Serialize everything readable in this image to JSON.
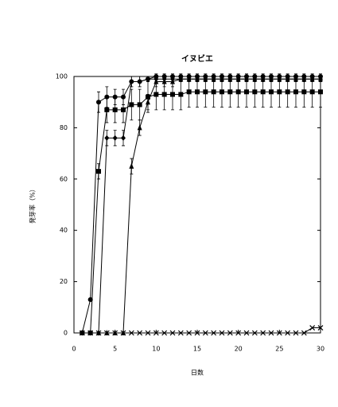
{
  "chart_data": {
    "type": "line",
    "title": "イヌビエ",
    "x_label": "日数",
    "y_label": "発芽率（%）",
    "x": [
      1,
      2,
      3,
      4,
      5,
      6,
      7,
      8,
      9,
      10,
      11,
      12,
      13,
      14,
      15,
      16,
      17,
      18,
      19,
      20,
      21,
      22,
      23,
      24,
      25,
      26,
      27,
      28,
      29,
      30
    ],
    "xlim": [
      0,
      30
    ],
    "xticks": [
      0,
      5,
      10,
      15,
      20,
      25,
      30
    ],
    "ylim": [
      0,
      100
    ],
    "yticks": [
      0,
      20,
      40,
      60,
      80,
      100
    ],
    "series": [
      {
        "marker": "circle",
        "color": "#000000",
        "values": [
          0,
          13,
          90,
          92,
          92,
          92,
          98,
          98,
          99,
          100,
          100,
          100,
          100,
          100,
          100,
          100,
          100,
          100,
          100,
          100,
          100,
          100,
          100,
          100,
          100,
          100,
          100,
          100,
          100,
          100
        ],
        "errors": [
          0,
          0,
          4,
          4,
          3,
          3,
          2,
          2,
          1,
          1,
          1,
          1,
          1,
          1,
          1,
          1,
          1,
          1,
          1,
          1,
          1,
          1,
          1,
          1,
          1,
          1,
          1,
          1,
          1,
          1
        ]
      },
      {
        "marker": "square",
        "color": "#000000",
        "values": [
          0,
          0,
          63,
          87,
          87,
          87,
          89,
          89,
          92,
          93,
          93,
          93,
          93,
          94,
          94,
          94,
          94,
          94,
          94,
          94,
          94,
          94,
          94,
          94,
          94,
          94,
          94,
          94,
          94,
          94
        ],
        "errors": [
          0,
          0,
          3,
          5,
          5,
          5,
          6,
          6,
          6,
          6,
          6,
          6,
          6,
          6,
          6,
          6,
          6,
          6,
          6,
          6,
          6,
          6,
          6,
          6,
          6,
          6,
          6,
          6,
          6,
          6
        ]
      },
      {
        "marker": "diamond",
        "color": "#000000",
        "values": [
          0,
          0,
          0,
          76,
          76,
          76,
          98,
          98,
          99,
          99,
          99,
          99,
          99,
          99,
          99,
          99,
          99,
          99,
          99,
          99,
          99,
          99,
          99,
          99,
          99,
          99,
          99,
          99,
          99,
          99
        ],
        "errors": [
          0,
          0,
          0,
          3,
          3,
          3,
          2,
          2,
          1,
          1,
          1,
          1,
          1,
          1,
          1,
          1,
          1,
          1,
          1,
          1,
          1,
          1,
          1,
          1,
          1,
          1,
          1,
          1,
          1,
          1
        ]
      },
      {
        "marker": "triangle",
        "color": "#000000",
        "values": [
          0,
          0,
          0,
          0,
          0,
          0,
          65,
          80,
          90,
          98,
          98,
          98,
          99,
          99,
          99,
          99,
          99,
          99,
          99,
          99,
          99,
          99,
          99,
          99,
          99,
          99,
          99,
          99,
          99,
          99
        ],
        "errors": [
          0,
          0,
          0,
          0,
          0,
          0,
          3,
          3,
          3,
          2,
          2,
          2,
          1,
          1,
          1,
          1,
          1,
          1,
          1,
          1,
          1,
          1,
          1,
          1,
          1,
          1,
          1,
          1,
          1,
          1
        ]
      },
      {
        "marker": "x",
        "color": "#000000",
        "values": [
          0,
          0,
          0,
          0,
          0,
          0,
          0,
          0,
          0,
          0,
          0,
          0,
          0,
          0,
          0,
          0,
          0,
          0,
          0,
          0,
          0,
          0,
          0,
          0,
          0,
          0,
          0,
          0,
          2,
          2
        ]
      }
    ]
  }
}
